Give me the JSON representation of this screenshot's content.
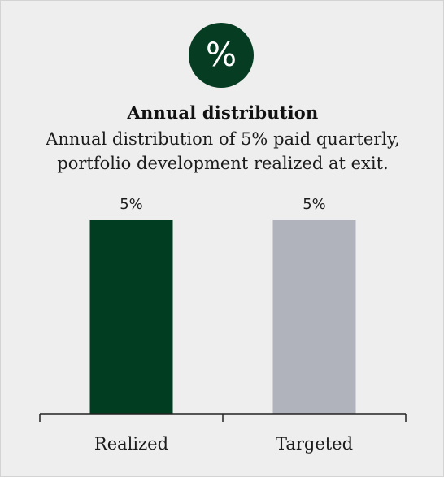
{
  "card": {
    "icon": "percent-icon",
    "icon_text": "%",
    "title": "Annual distribution",
    "subtitle_lines": [
      "Annual distribution of 5% paid quarterly,",
      "portfolio development realized at exit."
    ]
  },
  "colors": {
    "background": "#eeeeee",
    "badge": "#063d22",
    "realized": "#003d21",
    "targeted": "#b0b3bb",
    "axis": "#222222",
    "text": "#1c1c1c"
  },
  "chart_data": {
    "type": "bar",
    "categories": [
      "Realized",
      "Targeted"
    ],
    "values": [
      5,
      5
    ],
    "data_labels": [
      "5%",
      "5%"
    ],
    "unit": "%",
    "title": "",
    "xlabel": "",
    "ylabel": "",
    "ylim": [
      0,
      5
    ],
    "grid": false,
    "legend": "none"
  }
}
